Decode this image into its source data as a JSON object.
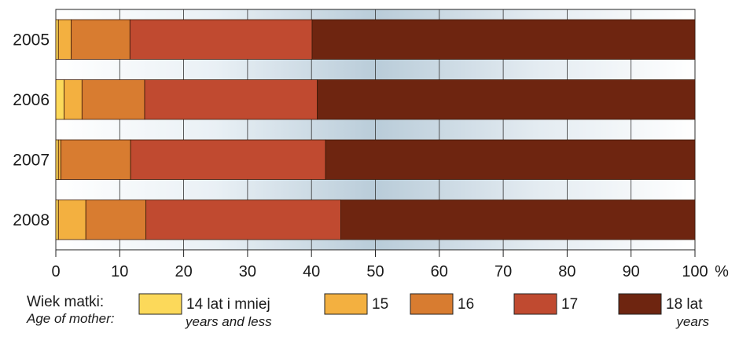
{
  "chart_data": {
    "type": "bar",
    "orientation": "horizontal",
    "stacked": true,
    "percent_axis": true,
    "categories": [
      "2005",
      "2006",
      "2007",
      "2008"
    ],
    "series": [
      {
        "name": "14 lat i mniej",
        "name_en": "years and less",
        "color": "#fcd95a",
        "values": [
          0.4,
          1.3,
          0.4,
          0.4
        ]
      },
      {
        "name": "15",
        "color": "#f3b040",
        "values": [
          2.0,
          2.8,
          0.4,
          4.3
        ]
      },
      {
        "name": "16",
        "color": "#d87c30",
        "values": [
          9.2,
          9.8,
          10.9,
          9.4
        ]
      },
      {
        "name": "17",
        "color": "#c04a30",
        "values": [
          28.5,
          27.0,
          30.5,
          30.5
        ]
      },
      {
        "name": "18 lat",
        "name_en": "years",
        "color": "#6e2510",
        "values": [
          59.9,
          59.1,
          57.8,
          55.4
        ]
      }
    ],
    "x_ticks": [
      "0",
      "10",
      "20",
      "30",
      "40",
      "50",
      "60",
      "70",
      "80",
      "90",
      "100"
    ],
    "x_unit": "%",
    "xlim": [
      0,
      100
    ],
    "grid": true,
    "legend_placement": "bottom",
    "legend_title": "Wiek matki:",
    "legend_title_en": "Age of mother:"
  }
}
